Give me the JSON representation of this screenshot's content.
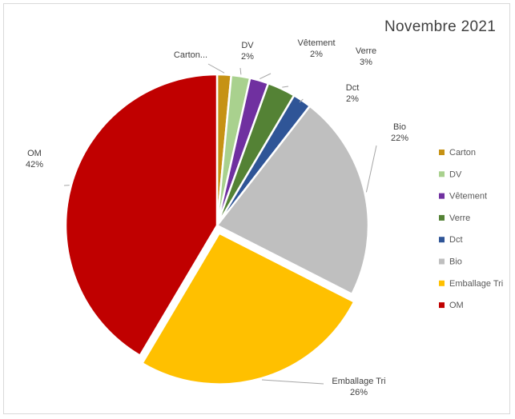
{
  "chart_data": {
    "type": "pie",
    "title": "Novembre 2021",
    "slices": [
      {
        "name": "Carton",
        "label": "Carton...",
        "pct_label": "",
        "value": 1.5,
        "color": "#c69214"
      },
      {
        "name": "DV",
        "label": "DV",
        "pct_label": "2%",
        "value": 2,
        "color": "#a9d18e"
      },
      {
        "name": "Vêtement",
        "label": "Vêtement",
        "pct_label": "2%",
        "value": 2,
        "color": "#7030a0"
      },
      {
        "name": "Verre",
        "label": "Verre",
        "pct_label": "3%",
        "value": 3,
        "color": "#548235"
      },
      {
        "name": "Dct",
        "label": "Dct",
        "pct_label": "2%",
        "value": 2,
        "color": "#2f5597"
      },
      {
        "name": "Bio",
        "label": "Bio",
        "pct_label": "22%",
        "value": 22,
        "color": "#bfbfbf"
      },
      {
        "name": "Emballage Tri",
        "label": "Emballage Tri",
        "pct_label": "26%",
        "value": 26,
        "color": "#ffc000"
      },
      {
        "name": "OM",
        "label": "OM",
        "pct_label": "42%",
        "value": 41.5,
        "color": "#c00000"
      }
    ],
    "legend": [
      "Carton",
      "DV",
      "Vêtement",
      "Verre",
      "Dct",
      "Bio",
      "Emballage Tri",
      "OM"
    ],
    "legend_position": "right"
  }
}
